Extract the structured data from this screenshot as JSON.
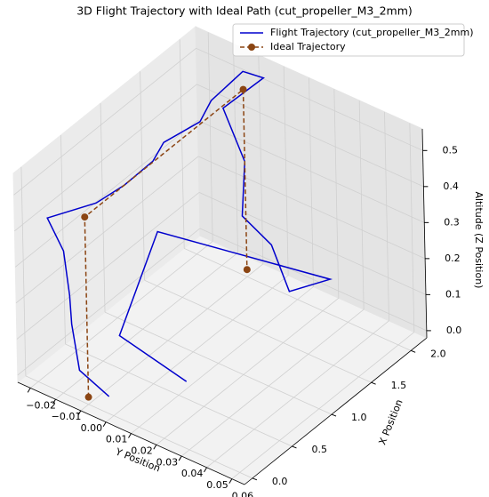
{
  "chart_data": {
    "type": "line3d",
    "title": "3D Flight Trajectory with Ideal Path (cut_propeller_M3_2mm)",
    "x_label": "X Position",
    "y_label": "Y Position",
    "z_label": "Altitude (Z Position)",
    "xlim": [
      -0.1,
      2.2
    ],
    "ylim": [
      -0.025,
      0.065
    ],
    "zlim": [
      -0.02,
      0.56
    ],
    "xticks": [
      {
        "value": 0,
        "label": "0.0"
      },
      {
        "value": 0.5,
        "label": "0.5"
      },
      {
        "value": 1,
        "label": "1.0"
      },
      {
        "value": 1.5,
        "label": "1.5"
      },
      {
        "value": 2,
        "label": "2.0"
      }
    ],
    "yticks": [
      {
        "value": -0.02,
        "label": "−0.02"
      },
      {
        "value": -0.01,
        "label": "−0.01"
      },
      {
        "value": 0,
        "label": "0.00"
      },
      {
        "value": 0.01,
        "label": "0.01"
      },
      {
        "value": 0.02,
        "label": "0.02"
      },
      {
        "value": 0.03,
        "label": "0.03"
      },
      {
        "value": 0.04,
        "label": "0.04"
      },
      {
        "value": 0.05,
        "label": "0.05"
      },
      {
        "value": 0.06,
        "label": "0.06"
      }
    ],
    "zticks": [
      {
        "value": 0,
        "label": "0.0"
      },
      {
        "value": 0.1,
        "label": "0.1"
      },
      {
        "value": 0.2,
        "label": "0.2"
      },
      {
        "value": 0.3,
        "label": "0.3"
      },
      {
        "value": 0.4,
        "label": "0.4"
      },
      {
        "value": 0.5,
        "label": "0.5"
      }
    ],
    "grid": true,
    "legend": "upper right",
    "series": [
      {
        "name": "Flight Trajectory (cut_propeller_M3_2mm)",
        "color": "#0000cd",
        "marker": false,
        "dashed": false,
        "x": [
          0.1,
          0.05,
          0.12,
          0.04,
          0.1,
          0.0,
          0.3,
          0.5,
          0.8,
          1.0,
          1.3,
          1.6,
          2.0,
          2.1,
          1.9,
          2.0,
          1.8,
          2.0,
          1.9,
          2.1,
          0.9,
          0.4,
          0.6
        ],
        "y": [
          0.005,
          -0.005,
          -0.01,
          -0.008,
          -0.012,
          -0.015,
          -0.005,
          0.0,
          0.002,
          0.0,
          0.005,
          0.0,
          0.0,
          0.005,
          -0.005,
          0.0,
          0.005,
          0.01,
          0.02,
          0.03,
          0.0,
          0.0,
          0.02
        ],
        "z": [
          0.0,
          0.05,
          0.15,
          0.25,
          0.35,
          0.45,
          0.47,
          0.5,
          0.52,
          0.53,
          0.55,
          0.54,
          0.55,
          0.53,
          0.45,
          0.3,
          0.2,
          0.1,
          0.02,
          0.05,
          0.3,
          0.1,
          0.0
        ]
      },
      {
        "name": "Ideal Trajectory",
        "color": "#8b4513",
        "marker": true,
        "dashed": true,
        "x": [
          0,
          0,
          2,
          2
        ],
        "y": [
          0,
          0,
          0,
          0
        ],
        "z": [
          0,
          0.5,
          0.5,
          0
        ]
      }
    ]
  }
}
